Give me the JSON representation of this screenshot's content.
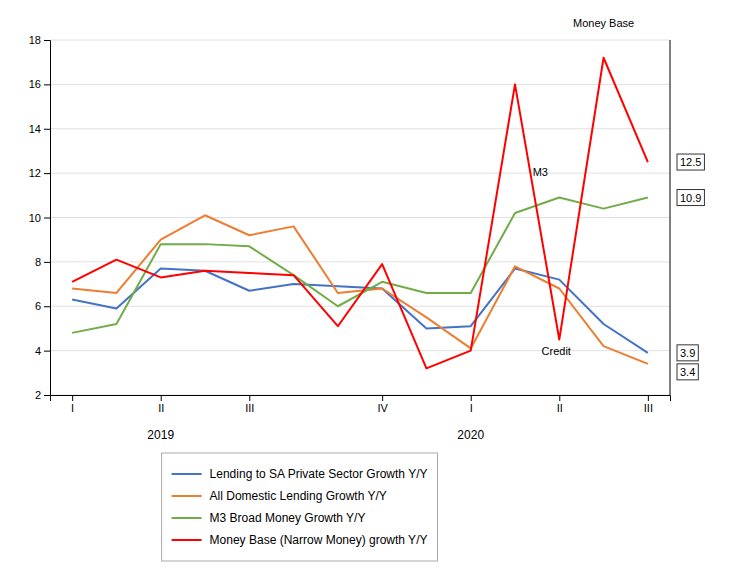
{
  "chart_data": {
    "type": "line",
    "categories": [
      "I",
      null,
      "II",
      null,
      "III",
      null,
      null,
      "IV",
      null,
      "I",
      null,
      "II",
      null,
      "III"
    ],
    "series": [
      {
        "name": "Lending to SA Private Sector Growth Y/Y",
        "color": "#4472C4",
        "values": [
          6.3,
          5.9,
          7.7,
          7.6,
          6.7,
          7.0,
          6.9,
          6.8,
          5.0,
          5.1,
          7.7,
          7.2,
          5.2,
          3.9
        ]
      },
      {
        "name": "All Domestic Lending Growth Y/Y",
        "color": "#ED7D31",
        "values": [
          6.8,
          6.6,
          9.0,
          10.1,
          9.2,
          9.6,
          6.6,
          6.8,
          5.5,
          4.1,
          7.8,
          6.8,
          4.2,
          3.4
        ]
      },
      {
        "name": "M3 Broad Money Growth Y/Y",
        "color": "#70AD47",
        "values": [
          4.8,
          5.2,
          8.8,
          8.8,
          8.7,
          7.4,
          6.0,
          7.1,
          6.6,
          6.6,
          10.2,
          10.9,
          10.4,
          10.9
        ]
      },
      {
        "name": "Money Base (Narrow Money) growth Y/Y",
        "color": "#FF0000",
        "values": [
          7.1,
          8.1,
          7.3,
          7.6,
          7.5,
          7.4,
          5.1,
          7.9,
          3.2,
          4.0,
          16.0,
          4.5,
          17.2,
          12.5
        ]
      }
    ],
    "ylim": [
      2,
      18
    ],
    "yticks": [
      2,
      4,
      6,
      8,
      10,
      12,
      14,
      16,
      18
    ],
    "grid": true,
    "legend": "bottom",
    "annotations": [
      {
        "text": "2019",
        "x": 2
      },
      {
        "text": "2020",
        "x": 9
      },
      {
        "text": "Money Base",
        "x": 12,
        "y": 18.5
      },
      {
        "text": "M3",
        "x": 10.4,
        "y": 11.8
      },
      {
        "text": "Credit",
        "x": 10.6,
        "y": 3.7
      },
      {
        "text": "12.5",
        "y": 12.5
      },
      {
        "text": "10.9",
        "y": 10.9
      },
      {
        "text": "3.9",
        "y": 3.9
      },
      {
        "text": "3.4",
        "y": 3.4
      }
    ]
  }
}
